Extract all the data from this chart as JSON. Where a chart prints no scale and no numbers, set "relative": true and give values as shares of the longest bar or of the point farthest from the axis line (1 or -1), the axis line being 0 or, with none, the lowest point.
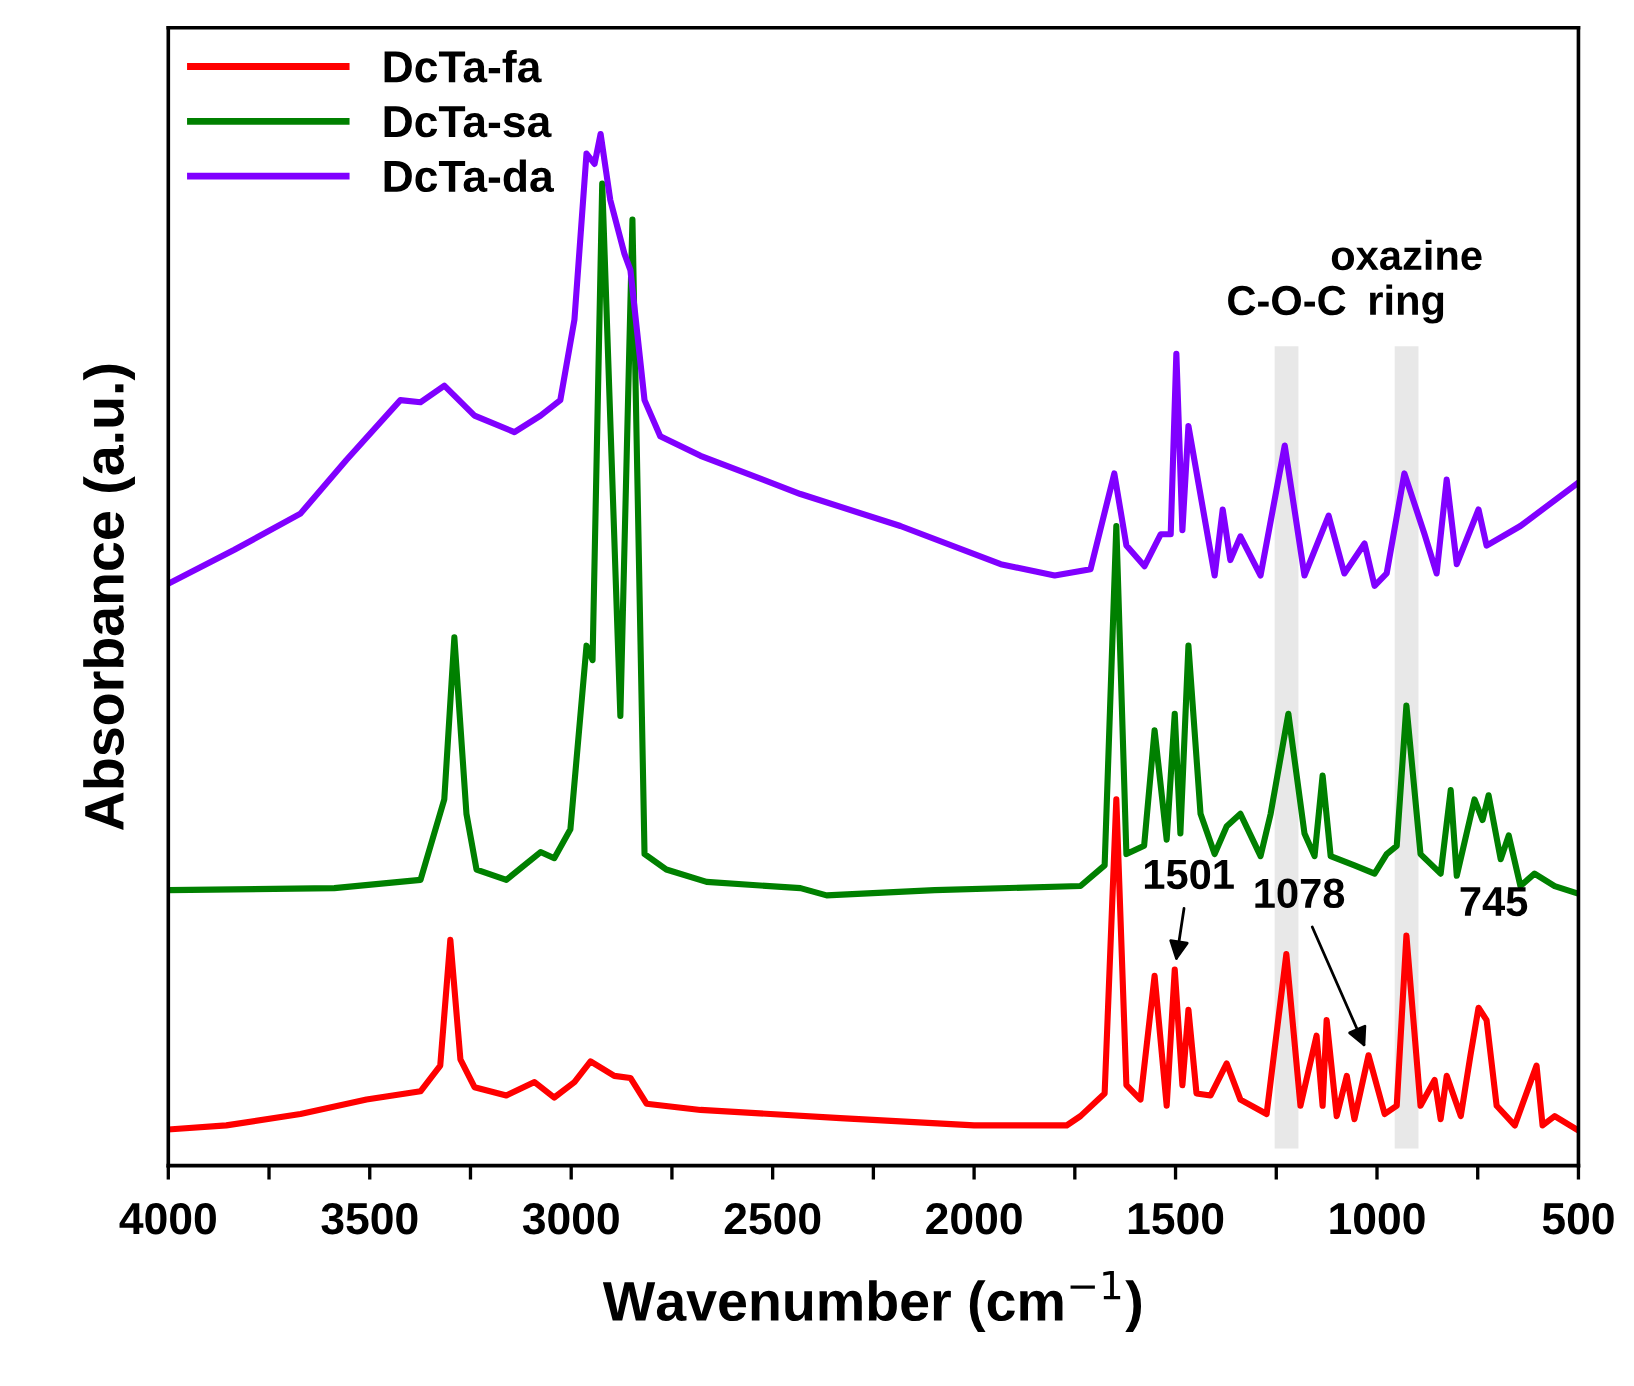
{
  "chart_data": {
    "type": "line",
    "relative": true,
    "xlabel": "Wavenumber (cm$^{−1}$)",
    "ylabel": "Absorbance (a.u.)",
    "legend": "top left",
    "grid": false,
    "xlim": [
      4000,
      500
    ],
    "xticks": [
      4000,
      {
        "value": 3750,
        "label": null
      },
      3500,
      {
        "value": 3250,
        "label": null
      },
      3000,
      {
        "value": 2750,
        "label": null
      },
      2500,
      {
        "value": 2250,
        "label": null
      },
      2000,
      {
        "value": 1750,
        "label": null
      },
      1500,
      {
        "value": 1250,
        "label": null
      },
      1000,
      {
        "value": 750,
        "label": null
      },
      500
    ],
    "series": [
      {
        "name": "DcTa-fa",
        "color": "#ff0000",
        "x": [
          4000,
          3856,
          3672,
          3508,
          3374,
          3325,
          3300,
          3275,
          3240,
          3161,
          3091,
          3042,
          2992,
          2952,
          2893,
          2853,
          2813,
          2679,
          2332,
          2000,
          1770,
          1736,
          1676,
          1647,
          1622,
          1587,
          1552,
          1522,
          1502,
          1483,
          1468,
          1448,
          1413,
          1373,
          1339,
          1274,
          1225,
          1190,
          1150,
          1135,
          1125,
          1100,
          1075,
          1056,
          1021,
          981,
          951,
          927,
          892,
          857,
          842,
          827,
          792,
          768,
          748,
          728,
          703,
          658,
          604,
          589,
          559,
          504
        ],
        "values": [
          0.035,
          0.039,
          0.05,
          0.064,
          0.072,
          0.097,
          0.219,
          0.103,
          0.076,
          0.068,
          0.081,
          0.066,
          0.081,
          0.101,
          0.087,
          0.085,
          0.06,
          0.054,
          0.046,
          0.039,
          0.039,
          0.048,
          0.07,
          0.355,
          0.078,
          0.064,
          0.184,
          0.058,
          0.19,
          0.078,
          0.151,
          0.07,
          0.068,
          0.099,
          0.064,
          0.05,
          0.205,
          0.058,
          0.126,
          0.058,
          0.141,
          0.048,
          0.087,
          0.045,
          0.107,
          0.05,
          0.058,
          0.223,
          0.058,
          0.083,
          0.045,
          0.087,
          0.048,
          0.107,
          0.153,
          0.141,
          0.058,
          0.039,
          0.097,
          0.039,
          0.048,
          0.035
        ]
      },
      {
        "name": "DcTa-sa",
        "color": "#008000",
        "x": [
          4000,
          3588,
          3374,
          3315,
          3290,
          3260,
          3235,
          3161,
          3076,
          3042,
          3002,
          2962,
          2947,
          2923,
          2878,
          2848,
          2818,
          2764,
          2664,
          2431,
          2366,
          2098,
          1736,
          1676,
          1647,
          1622,
          1578,
          1552,
          1522,
          1502,
          1488,
          1468,
          1438,
          1403,
          1373,
          1339,
          1289,
          1264,
          1220,
          1180,
          1155,
          1135,
          1115,
          1056,
          1006,
          976,
          951,
          927,
          892,
          842,
          817,
          802,
          758,
          738,
          723,
          693,
          673,
          644,
          609,
          559,
          504
        ],
        "values": [
          0.267,
          0.269,
          0.277,
          0.355,
          0.512,
          0.341,
          0.287,
          0.277,
          0.304,
          0.298,
          0.326,
          0.504,
          0.49,
          0.952,
          0.436,
          0.917,
          0.302,
          0.287,
          0.275,
          0.269,
          0.262,
          0.267,
          0.271,
          0.291,
          0.62,
          0.302,
          0.31,
          0.422,
          0.316,
          0.438,
          0.322,
          0.504,
          0.341,
          0.302,
          0.329,
          0.341,
          0.3,
          0.341,
          0.438,
          0.322,
          0.3,
          0.378,
          0.3,
          0.291,
          0.283,
          0.302,
          0.31,
          0.446,
          0.302,
          0.283,
          0.364,
          0.281,
          0.355,
          0.335,
          0.359,
          0.297,
          0.32,
          0.271,
          0.283,
          0.271,
          0.264
        ]
      },
      {
        "name": "DcTa-da",
        "color": "#8000ff",
        "x": [
          4000,
          3836,
          3672,
          3558,
          3424,
          3374,
          3315,
          3240,
          3141,
          3076,
          3027,
          2992,
          2962,
          2942,
          2927,
          2903,
          2868,
          2853,
          2818,
          2779,
          2679,
          2431,
          2183,
          1934,
          1800,
          1711,
          1652,
          1622,
          1577,
          1537,
          1512,
          1498,
          1483,
          1468,
          1403,
          1383,
          1364,
          1339,
          1289,
          1229,
          1180,
          1120,
          1081,
          1031,
          1006,
          976,
          932,
          882,
          852,
          827,
          802,
          748,
          728,
          644,
          504
        ],
        "values": [
          0.564,
          0.597,
          0.632,
          0.684,
          0.742,
          0.74,
          0.756,
          0.727,
          0.711,
          0.727,
          0.742,
          0.82,
          0.981,
          0.971,
          1.0,
          0.936,
          0.884,
          0.868,
          0.742,
          0.707,
          0.688,
          0.651,
          0.62,
          0.583,
          0.572,
          0.578,
          0.671,
          0.601,
          0.581,
          0.612,
          0.612,
          0.787,
          0.616,
          0.717,
          0.572,
          0.636,
          0.587,
          0.61,
          0.572,
          0.698,
          0.572,
          0.63,
          0.574,
          0.603,
          0.562,
          0.574,
          0.671,
          0.612,
          0.574,
          0.665,
          0.583,
          0.636,
          0.601,
          0.62,
          0.661
        ]
      }
    ],
    "bands": [
      {
        "axis": "x",
        "from": 1254,
        "to": 1195,
        "label": "C-O-C",
        "color": "#d9d9d9"
      },
      {
        "axis": "x",
        "from": 956,
        "to": 897,
        "label": "oxazine\nring",
        "color": "#d9d9d9"
      }
    ],
    "annotations": [
      {
        "text": "1501",
        "x": 1502,
        "y": 0.19
      },
      {
        "text": "1078",
        "x": 1021,
        "y": 0.107
      },
      {
        "text": "745",
        "x": 745,
        "y": 0.153
      }
    ]
  }
}
